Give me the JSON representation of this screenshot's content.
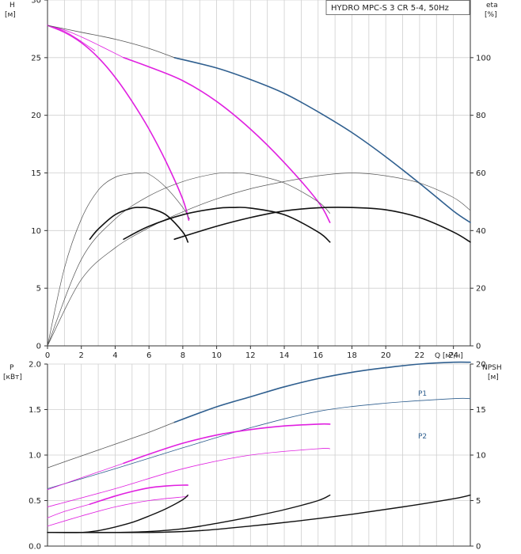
{
  "chart_data": [
    {
      "type": "line",
      "title": "HYDRO MPC-S 3 CR 5-4, 50Hz",
      "ylabel": "H",
      "ylabel_unit": "[м]",
      "y2label": "eta",
      "y2label_unit": "[%]",
      "xlabel": "Q",
      "xlabel_unit": "[м³/ч]",
      "xlim": [
        0,
        25
      ],
      "ylim": [
        0,
        30
      ],
      "y2lim": [
        0,
        120
      ],
      "x_ticks": [
        "0",
        "2",
        "4",
        "6",
        "8",
        "10",
        "12",
        "14",
        "16",
        "18",
        "20",
        "22",
        "24"
      ],
      "y_ticks": [
        "0",
        "5",
        "10",
        "15",
        "20",
        "25",
        "30"
      ],
      "y2_ticks": [
        "0",
        "20",
        "40",
        "60",
        "80",
        "100"
      ],
      "grid": true,
      "colors": {
        "blue": "#2f5f8f",
        "magenta": "#e020e0",
        "black": "#111111",
        "gray": "#555555"
      },
      "series": [
        {
          "role": "H-1 pump",
          "color": "magenta",
          "width": 1.6,
          "axis": "left",
          "x": [
            0,
            1,
            2,
            3,
            4,
            5,
            6,
            7,
            8,
            8.35
          ],
          "y": [
            27.8,
            27.2,
            26.3,
            25.0,
            23.3,
            21.2,
            18.8,
            16.0,
            12.7,
            10.9
          ]
        },
        {
          "role": "H-1 pump (extension)",
          "color": "magenta",
          "width": 0.8,
          "axis": "left",
          "x": [
            0,
            1,
            2,
            2.8
          ],
          "y": [
            27.8,
            27.3,
            26.4,
            25.6
          ]
        },
        {
          "role": "H-2 pumps",
          "color": "magenta",
          "width": 1.6,
          "axis": "left",
          "x": [
            4.5,
            6,
            8,
            10,
            12,
            14,
            16,
            16.7
          ],
          "y": [
            25.0,
            24.2,
            23.0,
            21.2,
            18.8,
            15.9,
            12.5,
            10.7
          ]
        },
        {
          "role": "H-2 pumps (extension)",
          "color": "magenta",
          "width": 0.8,
          "axis": "left",
          "x": [
            0,
            1,
            2,
            3,
            4.5
          ],
          "y": [
            27.8,
            27.4,
            26.8,
            26.1,
            25.0
          ]
        },
        {
          "role": "H-3 pumps",
          "color": "blue",
          "width": 1.6,
          "axis": "left",
          "x": [
            7.5,
            10,
            12,
            14,
            16,
            18,
            20,
            22,
            24,
            25
          ],
          "y": [
            25.0,
            24.1,
            23.1,
            21.9,
            20.3,
            18.5,
            16.4,
            14.1,
            11.7,
            10.7
          ]
        },
        {
          "role": "H-3 pumps (extension)",
          "color": "gray",
          "width": 0.8,
          "axis": "left",
          "x": [
            0,
            2,
            4,
            6,
            7.5
          ],
          "y": [
            27.8,
            27.2,
            26.6,
            25.8,
            25.0
          ]
        },
        {
          "role": "eta-1 thin",
          "color": "gray",
          "width": 0.7,
          "axis": "right",
          "x": [
            0,
            1,
            2,
            3,
            4,
            5,
            5.5,
            6,
            7,
            8,
            8.4
          ],
          "y": [
            0,
            27,
            44,
            54,
            58.5,
            59.8,
            60,
            59.6,
            55,
            48,
            44
          ]
        },
        {
          "role": "eta-2 thin",
          "color": "gray",
          "width": 0.7,
          "axis": "right",
          "x": [
            0,
            2,
            4,
            6,
            8,
            10,
            11,
            12,
            14,
            16,
            16.7
          ],
          "y": [
            0,
            30,
            44,
            52,
            57,
            59.8,
            60,
            59.6,
            56.5,
            50,
            46
          ]
        },
        {
          "role": "eta-3 thin",
          "color": "gray",
          "width": 0.7,
          "axis": "right",
          "x": [
            0,
            2,
            4,
            6,
            8,
            10,
            12,
            14,
            16,
            18,
            20,
            22,
            24,
            25
          ],
          "y": [
            0,
            23,
            34,
            41,
            46.5,
            51,
            54.5,
            57,
            59,
            60,
            59,
            56.5,
            51.5,
            47
          ]
        },
        {
          "role": "eta-1 bold",
          "color": "black",
          "width": 1.6,
          "axis": "right",
          "x": [
            2.5,
            3,
            4,
            5,
            5.5,
            6,
            7,
            8,
            8.3
          ],
          "y": [
            37,
            40.5,
            45.5,
            47.8,
            48,
            47.8,
            45.5,
            39.5,
            36
          ]
        },
        {
          "role": "eta-2 bold",
          "color": "black",
          "width": 1.6,
          "axis": "right",
          "x": [
            4.5,
            6,
            8,
            10,
            11,
            12,
            14,
            16,
            16.7
          ],
          "y": [
            37,
            41.5,
            45.5,
            47.7,
            48,
            47.8,
            45.5,
            39.5,
            36
          ]
        },
        {
          "role": "eta-3 bold",
          "color": "black",
          "width": 1.6,
          "axis": "right",
          "x": [
            7.5,
            10,
            12,
            14,
            16,
            18,
            20,
            22,
            24,
            25
          ],
          "y": [
            37,
            41.5,
            44.5,
            46.8,
            47.9,
            48,
            47.2,
            44.5,
            39.5,
            36
          ]
        }
      ]
    },
    {
      "type": "line",
      "ylabel": "P",
      "ylabel_unit": "[кВт]",
      "y2label": "NPSH",
      "y2label_unit": "[м]",
      "xlim": [
        0,
        25
      ],
      "ylim": [
        0,
        2.0
      ],
      "y2lim": [
        0,
        20
      ],
      "y_ticks": [
        "0.0",
        "0.5",
        "1.0",
        "1.5",
        "2.0"
      ],
      "y2_ticks": [
        "0",
        "5",
        "10",
        "15",
        "20"
      ],
      "grid": true,
      "series": [
        {
          "name": "P1",
          "role": "P1 3 pumps",
          "color": "blue",
          "width": 1.6,
          "axis": "left",
          "x": [
            7.5,
            10,
            12,
            14,
            16,
            18,
            20,
            22,
            24,
            25
          ],
          "y": [
            1.36,
            1.53,
            1.64,
            1.75,
            1.84,
            1.91,
            1.96,
            2.0,
            2.02,
            2.02
          ]
        },
        {
          "role": "P1 3 pumps (extension)",
          "color": "gray",
          "width": 0.8,
          "axis": "left",
          "x": [
            0,
            2,
            4,
            6,
            7.5
          ],
          "y": [
            0.86,
            0.99,
            1.12,
            1.25,
            1.36
          ]
        },
        {
          "name": "P2",
          "role": "P2 3 pumps",
          "color": "blue",
          "width": 0.8,
          "axis": "left",
          "x": [
            0,
            4,
            8,
            12,
            16,
            20,
            24,
            25
          ],
          "y": [
            0.63,
            0.85,
            1.08,
            1.3,
            1.48,
            1.57,
            1.62,
            1.62
          ]
        },
        {
          "role": "P1 2 pumps",
          "color": "magenta",
          "width": 1.6,
          "axis": "left",
          "x": [
            4.5,
            6,
            8,
            10,
            12,
            14,
            16,
            16.7
          ],
          "y": [
            0.91,
            1.01,
            1.13,
            1.22,
            1.28,
            1.32,
            1.34,
            1.34
          ]
        },
        {
          "role": "P1 2 pumps (extension)",
          "color": "magenta",
          "width": 0.8,
          "axis": "left",
          "x": [
            0,
            2,
            4.5
          ],
          "y": [
            0.62,
            0.75,
            0.91
          ]
        },
        {
          "role": "P2 2 pumps",
          "color": "magenta",
          "width": 0.8,
          "axis": "left",
          "x": [
            0,
            4,
            8,
            12,
            16,
            16.7
          ],
          "y": [
            0.43,
            0.63,
            0.85,
            1.0,
            1.07,
            1.07
          ]
        },
        {
          "role": "P1 1 pump",
          "color": "magenta",
          "width": 1.6,
          "axis": "left",
          "x": [
            2.5,
            4,
            5,
            6,
            7,
            8,
            8.3
          ],
          "y": [
            0.46,
            0.55,
            0.6,
            0.64,
            0.66,
            0.67,
            0.67
          ]
        },
        {
          "role": "P1 1 pump (extension)",
          "color": "magenta",
          "width": 0.8,
          "axis": "left",
          "x": [
            0,
            1,
            2.5
          ],
          "y": [
            0.31,
            0.38,
            0.46
          ]
        },
        {
          "role": "P2 1 pump",
          "color": "magenta",
          "width": 0.8,
          "axis": "left",
          "x": [
            0,
            2,
            4,
            6,
            8,
            8.3
          ],
          "y": [
            0.22,
            0.33,
            0.43,
            0.5,
            0.54,
            0.54
          ]
        },
        {
          "role": "NPSH 1 pump",
          "color": "black",
          "width": 1.4,
          "axis": "right",
          "x": [
            0,
            2,
            3,
            4,
            5,
            6,
            7,
            8,
            8.3
          ],
          "y": [
            1.5,
            1.5,
            1.7,
            2.1,
            2.6,
            3.3,
            4.1,
            5.1,
            5.6
          ]
        },
        {
          "role": "NPSH 2 pumps",
          "color": "black",
          "width": 1.4,
          "axis": "right",
          "x": [
            0,
            4,
            6,
            8,
            10,
            12,
            14,
            16,
            16.7
          ],
          "y": [
            1.5,
            1.5,
            1.6,
            1.9,
            2.5,
            3.2,
            4.0,
            5.0,
            5.6
          ]
        },
        {
          "role": "NPSH 3 pumps",
          "color": "black",
          "width": 1.4,
          "axis": "right",
          "x": [
            0,
            6,
            9,
            12,
            15,
            18,
            21,
            24,
            25
          ],
          "y": [
            1.5,
            1.5,
            1.7,
            2.2,
            2.8,
            3.5,
            4.3,
            5.2,
            5.6
          ]
        }
      ]
    }
  ]
}
